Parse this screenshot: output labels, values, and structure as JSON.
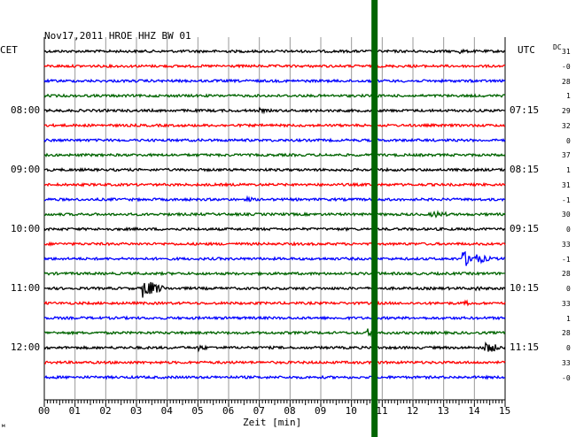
{
  "chart_data": {
    "type": "line",
    "title": "Nov17,2011  HROE HHZ BW 01",
    "left_timezone": "CET",
    "right_timezone": "UTC",
    "dc_label": "DC",
    "xlabel": "Zeit [min]",
    "x_ticks": [
      "00",
      "01",
      "02",
      "03",
      "04",
      "05",
      "06",
      "07",
      "08",
      "09",
      "10",
      "11",
      "12",
      "13",
      "14",
      "15"
    ],
    "xlim": [
      0,
      15
    ],
    "left_time_labels": [
      "08:00",
      "09:00",
      "10:00",
      "11:00",
      "12:00"
    ],
    "right_time_labels": [
      "07:15",
      "08:15",
      "09:15",
      "10:15",
      "11:15"
    ],
    "dc_offsets": [
      "31",
      "-0",
      "28",
      "1",
      "29",
      "32",
      "0",
      "37",
      "1",
      "31",
      "-1",
      "30",
      "0",
      "33",
      "-1",
      "28",
      "0",
      "33",
      "1",
      "28",
      "0",
      "33",
      "-0"
    ],
    "trace_colors": [
      "#000000",
      "#ff0000",
      "#0000ff",
      "#006400"
    ],
    "event_marker": {
      "minute": 10.75,
      "color": "#006400"
    },
    "corner_mark": "м",
    "events": [
      {
        "trace": 16,
        "minute": 3.2,
        "amplitude": 11,
        "duration": 0.9
      },
      {
        "trace": 14,
        "minute": 13.6,
        "amplitude": 9,
        "duration": 1.2
      },
      {
        "trace": 20,
        "minute": 14.3,
        "amplitude": 7,
        "duration": 0.8
      },
      {
        "trace": 20,
        "minute": 5.0,
        "amplitude": 4,
        "duration": 0.5
      },
      {
        "trace": 11,
        "minute": 12.6,
        "amplitude": 4,
        "duration": 1.0
      },
      {
        "trace": 19,
        "minute": 10.5,
        "amplitude": 5,
        "duration": 0.6
      },
      {
        "trace": 4,
        "minute": 7.0,
        "amplitude": 3,
        "duration": 0.5
      },
      {
        "trace": 10,
        "minute": 6.6,
        "amplitude": 3,
        "duration": 0.5
      },
      {
        "trace": 0,
        "minute": 13.5,
        "amplitude": 3,
        "duration": 0.5
      },
      {
        "trace": 16,
        "minute": 14.0,
        "amplitude": 3,
        "duration": 0.6
      },
      {
        "trace": 17,
        "minute": 13.7,
        "amplitude": 3,
        "duration": 0.5
      }
    ]
  }
}
